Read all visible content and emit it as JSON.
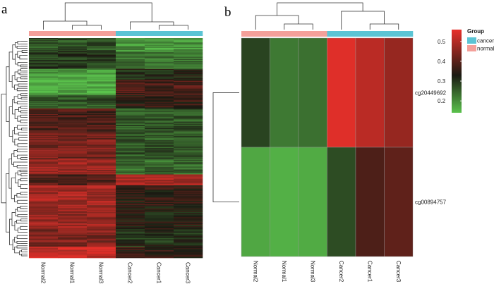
{
  "chart_data": [
    {
      "panel": "a",
      "type": "heatmap",
      "title": "",
      "columns": [
        "Normal2",
        "Normal1",
        "Normal3",
        "Cancer2",
        "Cancer1",
        "Cancer3"
      ],
      "column_groups": [
        "normal",
        "normal",
        "normal",
        "cancer",
        "cancer",
        "cancer"
      ],
      "row_count": 200,
      "color_scale": "green-black-red",
      "column_dendrogram": "normal samples cluster together; cancer samples cluster together"
    },
    {
      "panel": "b",
      "type": "heatmap",
      "title": "",
      "columns": [
        "Normal2",
        "Normal1",
        "Normal3",
        "Cancer2",
        "Cancer1",
        "Cancer3"
      ],
      "column_groups": [
        "normal",
        "normal",
        "normal",
        "cancer",
        "cancer",
        "cancer"
      ],
      "rows": [
        "cg20449692",
        "cg00894757"
      ],
      "values": [
        [
          0.28,
          0.22,
          0.23,
          0.54,
          0.5,
          0.46
        ],
        [
          0.17,
          0.16,
          0.165,
          0.27,
          0.38,
          0.4
        ]
      ],
      "color_range": [
        0.14,
        0.55
      ],
      "legend": {
        "title": "Group",
        "entries": [
          {
            "label": "cancer",
            "color": "#5bc4d4"
          },
          {
            "label": "normal",
            "color": "#f4a09a"
          }
        ],
        "colorbar_ticks": [
          "0.5",
          "0.4",
          "0.3",
          "0.2"
        ],
        "colorbar_tick_values": [
          0.5,
          0.4,
          0.3,
          0.2
        ]
      }
    }
  ],
  "colors": {
    "normal": "#f4a09a",
    "cancer": "#5bc4d4",
    "high": "#e8302a",
    "mid": "#1a1a12",
    "low": "#5ac24c"
  },
  "panel_labels": {
    "a": "a",
    "b": "b"
  }
}
